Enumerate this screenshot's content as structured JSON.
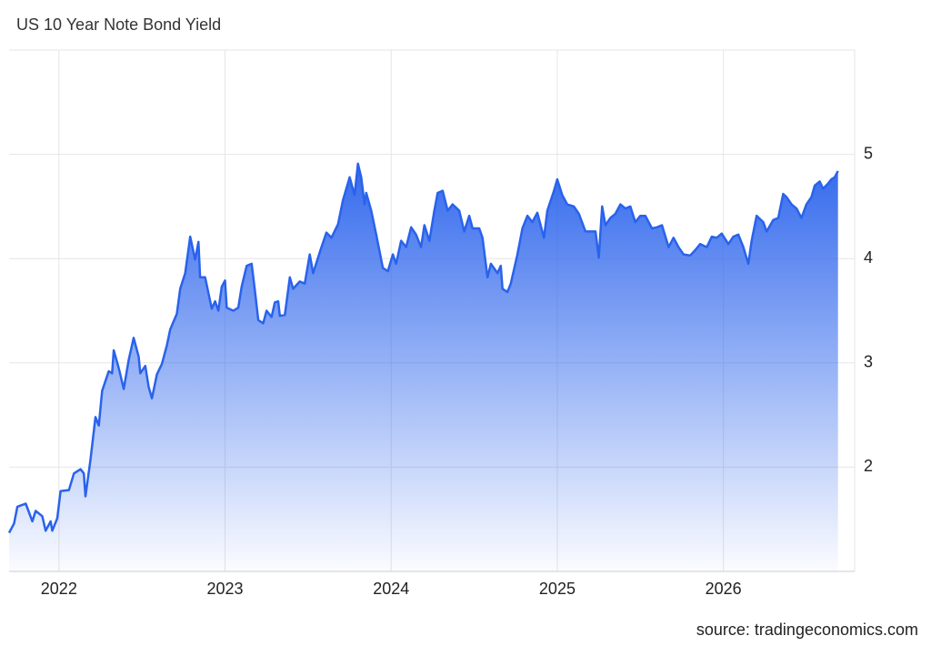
{
  "chart_data": {
    "type": "area",
    "title": "US 10 Year Note Bond Yield",
    "source": "source: tradingeconomics.com",
    "color": "#2962ec",
    "grid": true,
    "xlim": [
      2021.7,
      2026.79
    ],
    "xticks": [
      2022,
      2023,
      2024,
      2025,
      2026
    ],
    "ylim": [
      1,
      6
    ],
    "yticks": [
      2,
      3,
      4,
      5
    ],
    "x": [
      2021.7,
      2021.73,
      2021.75,
      2021.8,
      2021.84,
      2021.86,
      2021.9,
      2021.92,
      2021.95,
      2021.96,
      2021.99,
      2022.01,
      2022.06,
      2022.09,
      2022.13,
      2022.15,
      2022.16,
      2022.19,
      2022.22,
      2022.24,
      2022.26,
      2022.3,
      2022.32,
      2022.33,
      2022.36,
      2022.39,
      2022.42,
      2022.45,
      2022.48,
      2022.49,
      2022.52,
      2022.54,
      2022.56,
      2022.59,
      2022.62,
      2022.65,
      2022.67,
      2022.71,
      2022.73,
      2022.76,
      2022.79,
      2022.82,
      2022.84,
      2022.85,
      2022.88,
      2022.92,
      2022.94,
      2022.96,
      2022.98,
      2023.0,
      2023.01,
      2023.05,
      2023.08,
      2023.1,
      2023.13,
      2023.16,
      2023.18,
      2023.2,
      2023.23,
      2023.25,
      2023.28,
      2023.3,
      2023.32,
      2023.33,
      2023.36,
      2023.39,
      2023.41,
      2023.45,
      2023.48,
      2023.51,
      2023.53,
      2023.57,
      2023.61,
      2023.64,
      2023.68,
      2023.71,
      2023.75,
      2023.78,
      2023.8,
      2023.82,
      2023.84,
      2023.85,
      2023.88,
      2023.91,
      2023.95,
      2023.98,
      2024.01,
      2024.03,
      2024.06,
      2024.09,
      2024.12,
      2024.15,
      2024.18,
      2024.2,
      2024.23,
      2024.26,
      2024.28,
      2024.31,
      2024.34,
      2024.37,
      2024.41,
      2024.44,
      2024.47,
      2024.49,
      2024.53,
      2024.55,
      2024.58,
      2024.6,
      2024.64,
      2024.66,
      2024.67,
      2024.7,
      2024.72,
      2024.76,
      2024.79,
      2024.82,
      2024.85,
      2024.88,
      2024.92,
      2024.94,
      2024.98,
      2025.0,
      2025.03,
      2025.06,
      2025.1,
      2025.13,
      2025.17,
      2025.19,
      2025.23,
      2025.25,
      2025.27,
      2025.29,
      2025.32,
      2025.35,
      2025.38,
      2025.41,
      2025.44,
      2025.47,
      2025.5,
      2025.53,
      2025.57,
      2025.6,
      2025.63,
      2025.67,
      2025.7,
      2025.73,
      2025.76,
      2025.8,
      2025.83,
      2025.86,
      2025.9,
      2025.93,
      2025.96,
      2025.99,
      2026.03,
      2026.06,
      2026.09,
      2026.12,
      2026.15,
      2026.17,
      2026.2,
      2026.24,
      2026.26,
      2026.3,
      2026.33,
      2026.36,
      2026.38,
      2026.41,
      2026.44,
      2026.47,
      2026.5,
      2026.53,
      2026.55,
      2026.58,
      2026.6,
      2026.63,
      2026.65,
      2026.67,
      2026.69
    ],
    "values": [
      1.37,
      1.46,
      1.62,
      1.65,
      1.48,
      1.58,
      1.53,
      1.39,
      1.48,
      1.39,
      1.51,
      1.77,
      1.78,
      1.94,
      1.98,
      1.94,
      1.72,
      2.07,
      2.48,
      2.4,
      2.73,
      2.92,
      2.9,
      3.12,
      2.95,
      2.75,
      3.03,
      3.24,
      3.06,
      2.9,
      2.97,
      2.77,
      2.66,
      2.89,
      2.99,
      3.17,
      3.32,
      3.47,
      3.71,
      3.86,
      4.21,
      3.99,
      4.16,
      3.82,
      3.82,
      3.52,
      3.59,
      3.5,
      3.73,
      3.79,
      3.53,
      3.5,
      3.53,
      3.73,
      3.93,
      3.95,
      3.69,
      3.41,
      3.38,
      3.5,
      3.44,
      3.58,
      3.59,
      3.45,
      3.46,
      3.82,
      3.71,
      3.78,
      3.76,
      4.04,
      3.86,
      4.06,
      4.25,
      4.2,
      4.33,
      4.56,
      4.78,
      4.61,
      4.91,
      4.78,
      4.52,
      4.63,
      4.46,
      4.23,
      3.91,
      3.88,
      4.04,
      3.95,
      4.17,
      4.11,
      4.3,
      4.23,
      4.11,
      4.32,
      4.17,
      4.46,
      4.63,
      4.65,
      4.46,
      4.52,
      4.46,
      4.26,
      4.41,
      4.29,
      4.29,
      4.2,
      3.82,
      3.95,
      3.86,
      3.93,
      3.71,
      3.68,
      3.76,
      4.04,
      4.29,
      4.41,
      4.35,
      4.44,
      4.2,
      4.46,
      4.65,
      4.76,
      4.61,
      4.52,
      4.5,
      4.43,
      4.26,
      4.26,
      4.26,
      4.01,
      4.5,
      4.32,
      4.39,
      4.43,
      4.52,
      4.48,
      4.5,
      4.35,
      4.41,
      4.41,
      4.29,
      4.3,
      4.32,
      4.11,
      4.2,
      4.11,
      4.04,
      4.03,
      4.08,
      4.14,
      4.11,
      4.21,
      4.2,
      4.24,
      4.14,
      4.21,
      4.23,
      4.11,
      3.95,
      4.17,
      4.41,
      4.35,
      4.26,
      4.37,
      4.39,
      4.62,
      4.59,
      4.52,
      4.48,
      4.39,
      4.52,
      4.59,
      4.7,
      4.74,
      4.67,
      4.72,
      4.76,
      4.78,
      4.84
    ]
  }
}
